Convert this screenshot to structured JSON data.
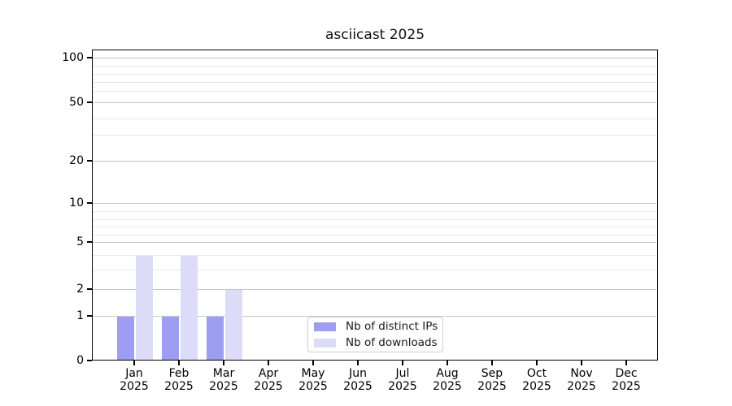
{
  "chart_data": {
    "type": "bar",
    "title": "asciicast 2025",
    "months": [
      {
        "name": "Jan",
        "year": "2025"
      },
      {
        "name": "Feb",
        "year": "2025"
      },
      {
        "name": "Mar",
        "year": "2025"
      },
      {
        "name": "Apr",
        "year": "2025"
      },
      {
        "name": "May",
        "year": "2025"
      },
      {
        "name": "Jun",
        "year": "2025"
      },
      {
        "name": "Jul",
        "year": "2025"
      },
      {
        "name": "Aug",
        "year": "2025"
      },
      {
        "name": "Sep",
        "year": "2025"
      },
      {
        "name": "Oct",
        "year": "2025"
      },
      {
        "name": "Nov",
        "year": "2025"
      },
      {
        "name": "Dec",
        "year": "2025"
      }
    ],
    "series": [
      {
        "name": "Nb of distinct IPs",
        "color": "#9d9df1",
        "values": [
          1,
          1,
          1,
          0,
          0,
          0,
          0,
          0,
          0,
          0,
          0,
          0
        ]
      },
      {
        "name": "Nb of downloads",
        "color": "#dcdcf9",
        "values": [
          4,
          4,
          2,
          0,
          0,
          0,
          0,
          0,
          0,
          0,
          0,
          0
        ]
      }
    ],
    "y_axis": {
      "scale": "symlog-like",
      "range": [
        0,
        100
      ],
      "tick_values": [
        0,
        1,
        2,
        5,
        10,
        20,
        50,
        100
      ],
      "tick_labels": [
        "0",
        "1",
        "2",
        "5",
        "10",
        "20",
        "50",
        "100"
      ],
      "minor_gridline_values": [
        3,
        4,
        6,
        7,
        8,
        9,
        30,
        40,
        60,
        70,
        80,
        90
      ]
    },
    "grid": "horizontal",
    "legend": {
      "position": "bottom-center-inside",
      "entries": [
        {
          "label": "Nb of distinct IPs",
          "color": "#9d9df1"
        },
        {
          "label": "Nb of downloads",
          "color": "#dcdcf9"
        }
      ]
    },
    "colors": {
      "background": "#ffffff",
      "frame": "#000000",
      "grid_major": "#c6c6c6",
      "grid_minor": "#e8e8e8"
    }
  }
}
